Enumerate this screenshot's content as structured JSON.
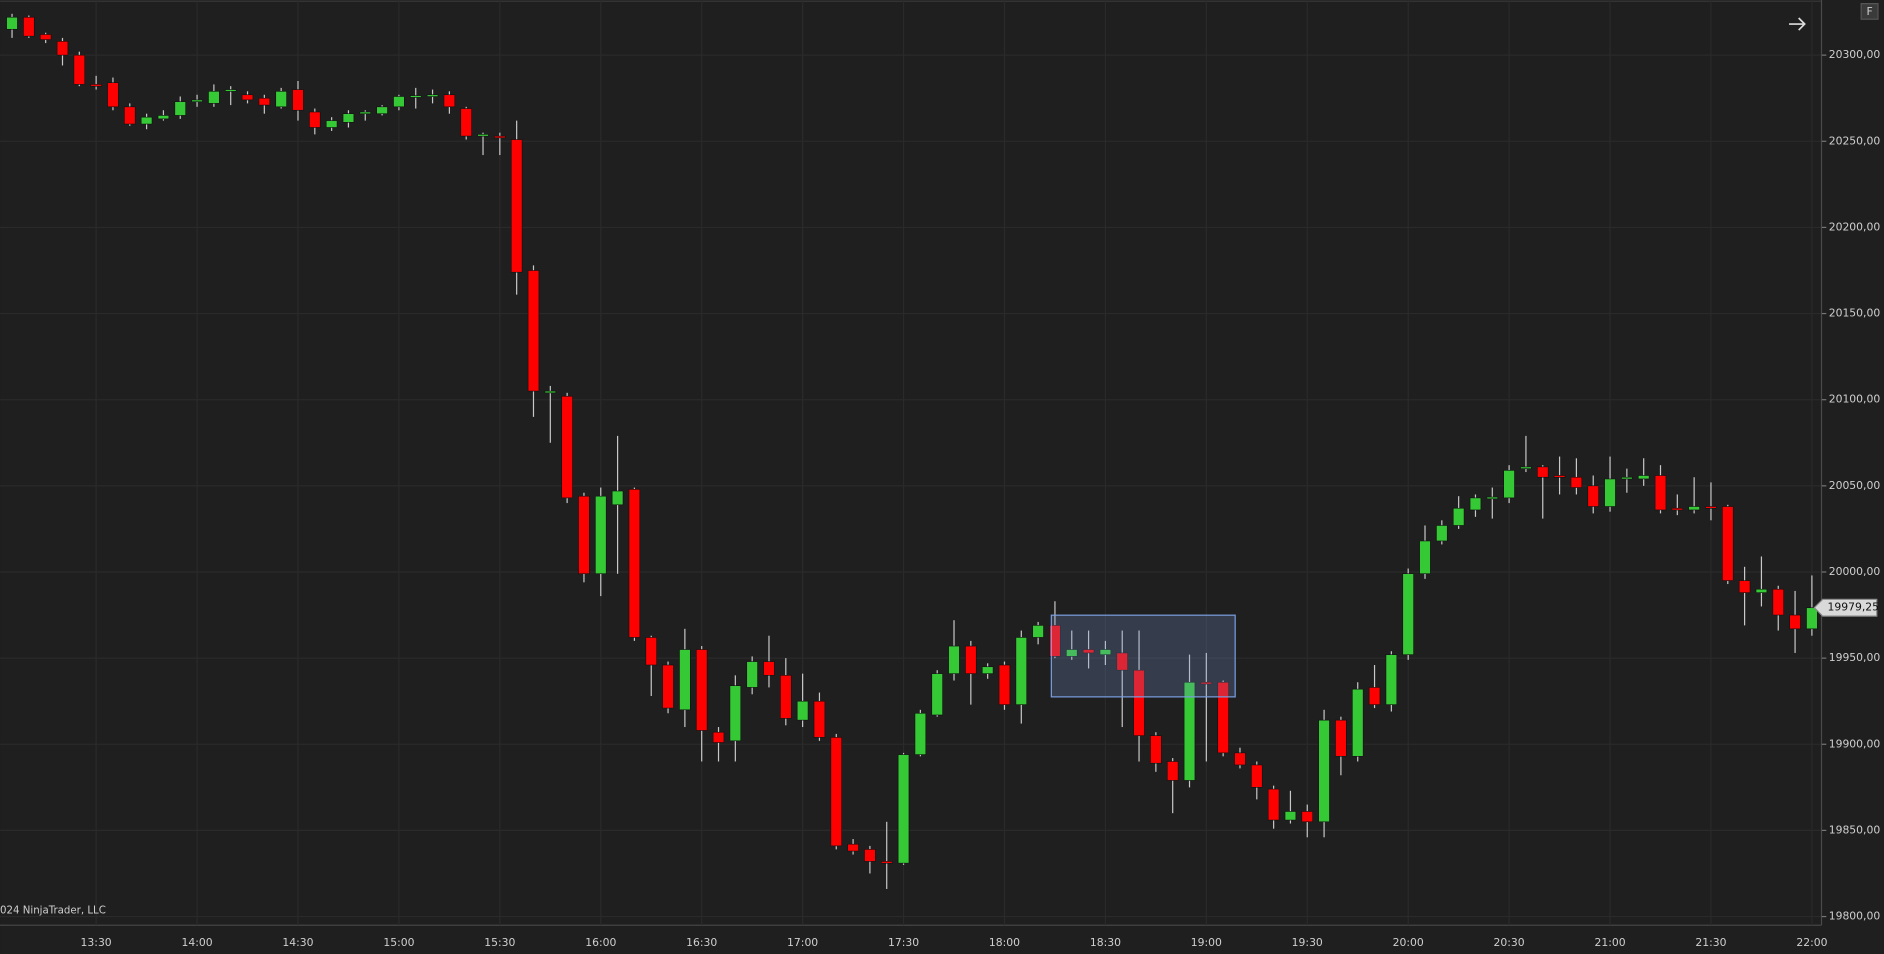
{
  "chart_data": {
    "type": "candlestick",
    "annotation": "024 NinjaTrader, LLC",
    "categories": [
      null,
      null,
      null,
      null,
      null,
      "13:30",
      null,
      null,
      null,
      null,
      null,
      "14:00",
      null,
      null,
      null,
      null,
      null,
      "14:30",
      null,
      null,
      null,
      null,
      null,
      "15:00",
      null,
      null,
      null,
      null,
      null,
      "15:30",
      null,
      null,
      null,
      null,
      null,
      "16:00",
      null,
      null,
      null,
      null,
      null,
      "16:30",
      null,
      null,
      null,
      null,
      null,
      "17:00",
      null,
      null,
      null,
      null,
      null,
      "17:30",
      null,
      null,
      null,
      null,
      null,
      "18:00",
      null,
      null,
      null,
      null,
      null,
      "18:30",
      null,
      null,
      null,
      null,
      null,
      "19:00",
      null,
      null,
      null,
      null,
      null,
      "19:30",
      null,
      null,
      null,
      null,
      null,
      "20:00",
      null,
      null,
      null,
      null,
      null,
      "20:30",
      null,
      null,
      null,
      null,
      null,
      "21:00",
      null,
      null,
      null,
      null,
      null,
      "21:30",
      null,
      null,
      null,
      null,
      null,
      "22:00"
    ],
    "open": [
      20315,
      20322,
      20312,
      20308,
      20300,
      20283,
      20284,
      20270,
      20260,
      20263,
      20265,
      20273,
      20272,
      20279,
      20277,
      20275,
      20270,
      20280,
      20267,
      20258,
      20261,
      20266,
      20266,
      20270,
      20276,
      20276,
      20277,
      20269,
      20253,
      20253,
      20251,
      20175,
      20104,
      20102,
      20044,
      19999,
      20039,
      20048,
      19962,
      19946,
      19920,
      19955,
      19907,
      19902,
      19933,
      19948,
      19940,
      19914,
      19925,
      19904,
      19842,
      19839,
      19832,
      19831,
      19894,
      19917,
      19941,
      19957,
      19941,
      19946,
      19923,
      19962,
      19969,
      19951,
      19955,
      19952,
      19953,
      19943,
      19905,
      19890,
      19879,
      19936,
      19936,
      19895,
      19888,
      19874,
      19856,
      19861,
      19855,
      19914,
      19893,
      19933,
      19923,
      19952,
      19999,
      20018,
      20027,
      20036,
      20043,
      20043,
      20060,
      20061,
      20056,
      20055,
      20050,
      20038,
      20054,
      20054,
      20056,
      20037,
      20036,
      20038,
      20038,
      19995,
      19988,
      19990,
      19975,
      19967
    ],
    "high": [
      20324,
      20323,
      20313,
      20310,
      20302,
      20288,
      20287,
      20272,
      20266,
      20268,
      20276,
      20277,
      20283,
      20282,
      20279,
      20277,
      20281,
      20285,
      20269,
      20264,
      20268,
      20268,
      20271,
      20277,
      20281,
      20280,
      20279,
      20270,
      20255,
      20255,
      20262,
      20178,
      20108,
      20104,
      20046,
      20049,
      20079,
      20049,
      19963,
      19948,
      19967,
      19957,
      19910,
      19940,
      19951,
      19963,
      19950,
      19941,
      19930,
      19906,
      19845,
      19841,
      19855,
      19895,
      19920,
      19943,
      19972,
      19960,
      19947,
      19948,
      19966,
      19971,
      19983,
      19966,
      19966,
      19960,
      19966,
      19966,
      19907,
      19892,
      19952,
      19953,
      19937,
      19898,
      19890,
      19876,
      19873,
      19865,
      19920,
      19916,
      19936,
      19946,
      19954,
      20002,
      20027,
      20030,
      20044,
      20045,
      20049,
      20062,
      20079,
      20062,
      20067,
      20066,
      20056,
      20067,
      20060,
      20066,
      20062,
      20045,
      20055,
      20052,
      20039,
      20003,
      20009,
      19992,
      19989,
      19998
    ],
    "low": [
      20310,
      20310,
      20307,
      20294,
      20282,
      20280,
      20268,
      20259,
      20257,
      20262,
      20263,
      20270,
      20270,
      20271,
      20272,
      20266,
      20269,
      20262,
      20254,
      20256,
      20258,
      20262,
      20265,
      20268,
      20269,
      20272,
      20266,
      20251,
      20242,
      20242,
      20161,
      20090,
      20075,
      20040,
      19994,
      19986,
      19999,
      19960,
      19928,
      19918,
      19910,
      19890,
      19890,
      19890,
      19929,
      19933,
      19911,
      19910,
      19902,
      19839,
      19836,
      19825,
      19816,
      19830,
      19893,
      19916,
      19937,
      19923,
      19938,
      19920,
      19912,
      19958,
      19950,
      19949,
      19944,
      19946,
      19910,
      19890,
      19884,
      19860,
      19875,
      19890,
      19893,
      19886,
      19868,
      19851,
      19854,
      19846,
      19846,
      19882,
      19890,
      19921,
      19919,
      19949,
      19996,
      20016,
      20025,
      20032,
      20031,
      20040,
      20058,
      20031,
      20045,
      20045,
      20034,
      20035,
      20046,
      20050,
      20034,
      20033,
      20034,
      20030,
      19993,
      19969,
      19980,
      19966,
      19953,
      19963
    ],
    "close": [
      20322,
      20311,
      20309,
      20300,
      20283,
      20282,
      20270,
      20260,
      20264,
      20265,
      20273,
      20274,
      20279,
      20280,
      20274,
      20271,
      20279,
      20268,
      20258,
      20262,
      20266,
      20267,
      20270,
      20276,
      20276.5,
      20277,
      20270,
      20253,
      20254,
      20252,
      20174,
      20105,
      20105,
      20043,
      19999,
      20044,
      20047,
      19962,
      19946,
      19921,
      19955,
      19908,
      19901,
      19934,
      19948,
      19940,
      19915,
      19925,
      19904,
      19841,
      19838,
      19832,
      19831,
      19894,
      19918,
      19941,
      19957,
      19941,
      19945,
      19923,
      19962,
      19969,
      19951,
      19955,
      19953,
      19955,
      19943,
      19905,
      19889,
      19879,
      19936,
      19935,
      19895,
      19888,
      19875,
      19856,
      19861,
      19855,
      19914,
      19893,
      19932,
      19923,
      19952,
      19999,
      20018,
      20027,
      20037,
      20043,
      20043.5,
      20059,
      20061,
      20055,
      20055,
      20049,
      20038,
      20054,
      20055,
      20056,
      20036,
      20036,
      20038,
      20037,
      19995,
      19988,
      19990,
      19975,
      19967,
      19979.25
    ],
    "last_price": {
      "value": 19979.25,
      "label": "19979,25"
    },
    "up_color": "#36c936",
    "down_color": "#ff0000",
    "wick_color": "#c8c8c8",
    "ylim": [
      19795,
      20332
    ],
    "yticks": [
      {
        "value": 19800,
        "label": "19800,00"
      },
      {
        "value": 19850,
        "label": "19850,00"
      },
      {
        "value": 19900,
        "label": "19900,00"
      },
      {
        "value": 19950,
        "label": "19950,00"
      },
      {
        "value": 20000,
        "label": "20000,00"
      },
      {
        "value": 20050,
        "label": "20050,00"
      },
      {
        "value": 20100,
        "label": "20100,00"
      },
      {
        "value": 20150,
        "label": "20150,00"
      },
      {
        "value": 20200,
        "label": "20200,00"
      },
      {
        "value": 20250,
        "label": "20250,00"
      },
      {
        "value": 20300,
        "label": "20300,00"
      }
    ],
    "grid": true,
    "button": "F"
  }
}
